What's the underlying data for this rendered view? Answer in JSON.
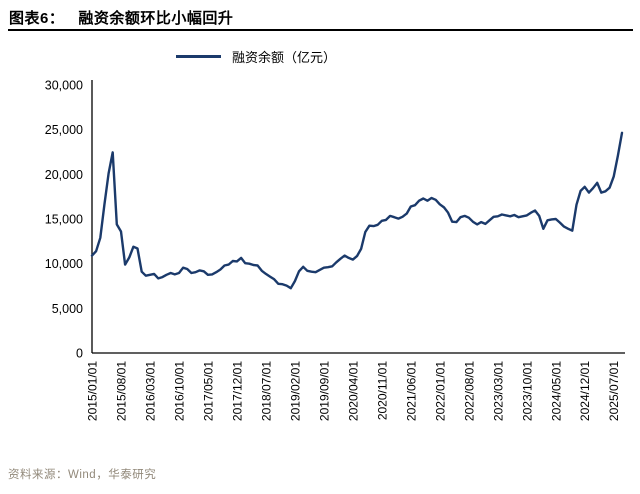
{
  "header": {
    "title_prefix": "图表6：",
    "title": "融资余额环比小幅回升"
  },
  "legend": {
    "label": "融资余额（亿元）"
  },
  "footer": {
    "source": "资料来源：Wind，华泰研究"
  },
  "colors": {
    "line": "#1B3A6B",
    "axis": "#000000",
    "footer_text": "#92897A"
  },
  "chart_data": {
    "type": "line",
    "title": "融资余额环比小幅回升",
    "xlabel": "",
    "ylabel": "",
    "ylim": [
      0,
      30000
    ],
    "grid": false,
    "legend_position": "top-center",
    "y_ticks": [
      0,
      5000,
      10000,
      15000,
      20000,
      25000,
      30000
    ],
    "y_tick_labels": [
      "0",
      "5,000",
      "10,000",
      "15,000",
      "20,000",
      "25,000",
      "30,000"
    ],
    "x_tick_labels": [
      "2015/01/01",
      "2015/08/01",
      "2016/03/01",
      "2016/10/01",
      "2017/05/01",
      "2017/12/01",
      "2018/07/01",
      "2019/02/01",
      "2019/09/01",
      "2020/04/01",
      "2020/11/01",
      "2021/06/01",
      "2022/01/01",
      "2022/08/01",
      "2023/03/01",
      "2023/10/01",
      "2024/05/01",
      "2024/12/01",
      "2025/07/01"
    ],
    "x_tick_month_indices": [
      0,
      7,
      14,
      21,
      28,
      35,
      42,
      49,
      56,
      63,
      70,
      77,
      84,
      91,
      98,
      105,
      112,
      119,
      126
    ],
    "series": [
      {
        "name": "融资余额（亿元）",
        "x_start": "2015/01",
        "x_interval": "month",
        "values": [
          10900,
          11400,
          12900,
          16600,
          20100,
          22450,
          14400,
          13600,
          9900,
          10700,
          11900,
          11700,
          9100,
          8650,
          8750,
          8850,
          8350,
          8500,
          8750,
          8950,
          8800,
          8950,
          9550,
          9400,
          8950,
          9050,
          9250,
          9150,
          8750,
          8800,
          9050,
          9350,
          9800,
          9900,
          10300,
          10250,
          10650,
          10050,
          10000,
          9850,
          9800,
          9200,
          8850,
          8550,
          8250,
          7750,
          7700,
          7550,
          7250,
          8050,
          9150,
          9650,
          9200,
          9100,
          9050,
          9300,
          9550,
          9600,
          9700,
          10150,
          10550,
          10900,
          10650,
          10450,
          10850,
          11650,
          13550,
          14250,
          14200,
          14350,
          14800,
          14900,
          15350,
          15200,
          15050,
          15250,
          15600,
          16400,
          16550,
          17050,
          17300,
          17050,
          17350,
          17150,
          16650,
          16300,
          15700,
          14700,
          14650,
          15200,
          15350,
          15150,
          14700,
          14400,
          14650,
          14450,
          14850,
          15250,
          15300,
          15500,
          15400,
          15300,
          15450,
          15200,
          15300,
          15400,
          15700,
          15950,
          15350,
          13900,
          14850,
          14950,
          15000,
          14600,
          14150,
          13900,
          13700,
          16600,
          18150,
          18600,
          17950,
          18450,
          19050,
          17950,
          18100,
          18500,
          19750,
          22100,
          24650
        ]
      }
    ]
  }
}
